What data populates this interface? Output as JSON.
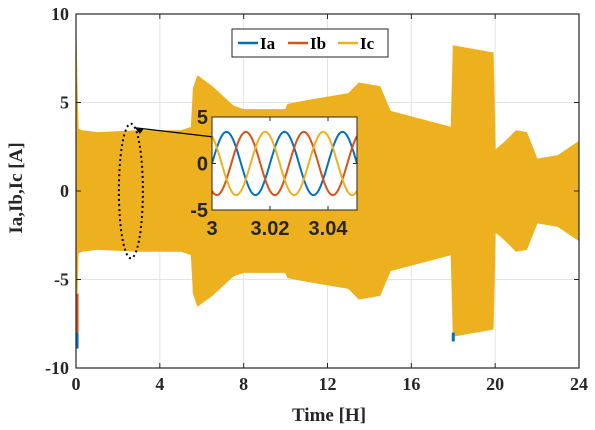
{
  "chart_data": [
    {
      "id": "main",
      "type": "line",
      "title": "",
      "xlabel": "Time [H]",
      "ylabel": "Ia,Ib,Ic [A]",
      "xlim": [
        0,
        24
      ],
      "ylim": [
        -10,
        10
      ],
      "xticks": [
        0,
        4,
        8,
        12,
        16,
        20,
        24
      ],
      "xtick_labels": [
        "0",
        "4",
        "8",
        "12",
        "16",
        "20",
        "24"
      ],
      "yticks": [
        -10,
        -5,
        0,
        5,
        10
      ],
      "ytick_labels": [
        "-10",
        "-5",
        "0",
        "5",
        "10"
      ],
      "grid": true,
      "legend": {
        "position": "top-center",
        "orientation": "horizontal"
      },
      "series": [
        {
          "name": "Ia",
          "color": "#0072BD"
        },
        {
          "name": "Ib",
          "color": "#D95319"
        },
        {
          "name": "Ic",
          "color": "#EDB120"
        }
      ],
      "envelope": {
        "x": [
          0.0,
          0.05,
          0.1,
          0.3,
          1.0,
          3.0,
          4.9,
          5.0,
          5.5,
          5.6,
          5.8,
          6.5,
          7.5,
          8.0,
          10.0,
          10.1,
          11.0,
          13.0,
          13.5,
          14.5,
          15.0,
          17.9,
          18.0,
          19.9,
          20.0,
          20.5,
          21.0,
          21.5,
          22.0,
          23.0,
          24.0
        ],
        "upper": [
          9.0,
          6.0,
          3.5,
          3.4,
          3.3,
          3.4,
          3.4,
          3.4,
          3.6,
          5.8,
          6.5,
          5.9,
          4.8,
          4.6,
          4.6,
          4.9,
          5.1,
          5.5,
          6.1,
          5.9,
          4.5,
          3.6,
          8.2,
          7.8,
          2.3,
          2.8,
          3.4,
          3.3,
          1.8,
          2.0,
          2.8
        ],
        "lower": [
          -9.0,
          -6.0,
          -3.5,
          -3.4,
          -3.3,
          -3.4,
          -3.4,
          -3.4,
          -3.6,
          -5.8,
          -6.5,
          -5.9,
          -4.8,
          -4.6,
          -4.6,
          -4.9,
          -5.1,
          -5.5,
          -6.1,
          -5.9,
          -4.5,
          -3.6,
          -8.2,
          -7.8,
          -2.3,
          -2.8,
          -3.4,
          -3.3,
          -1.8,
          -2.0,
          -2.8
        ]
      },
      "spikes": [
        {
          "series": "Ia",
          "x": 0.05,
          "y": [
            -8.9,
            -8.0
          ]
        },
        {
          "series": "Ib",
          "x": 0.05,
          "y": [
            -8.0,
            -5.8
          ]
        },
        {
          "series": "Ia",
          "x": 18.0,
          "y": [
            -8.5,
            -8.0
          ]
        }
      ],
      "annotation": {
        "type": "ellipse-with-arrow",
        "x": 3,
        "y_range": [
          -3.8,
          3.8
        ],
        "points_to": "inset"
      }
    },
    {
      "id": "inset",
      "type": "line",
      "title": "",
      "xlabel": "",
      "ylabel": "",
      "xlim": [
        3,
        3.05
      ],
      "ylim": [
        -5,
        5
      ],
      "xticks": [
        3,
        3.02,
        3.04
      ],
      "xtick_labels": [
        "3",
        "3.02",
        "3.04"
      ],
      "yticks": [
        -5,
        0,
        5
      ],
      "ytick_labels": [
        "-5",
        "0",
        "5"
      ],
      "grid": false,
      "amplitude": 3.4,
      "frequency_hz": 50,
      "series": [
        {
          "name": "Ia",
          "color": "#0072BD",
          "phase_deg": 0
        },
        {
          "name": "Ib",
          "color": "#D95319",
          "phase_deg": -120
        },
        {
          "name": "Ic",
          "color": "#EDB120",
          "phase_deg": 120
        }
      ]
    }
  ]
}
